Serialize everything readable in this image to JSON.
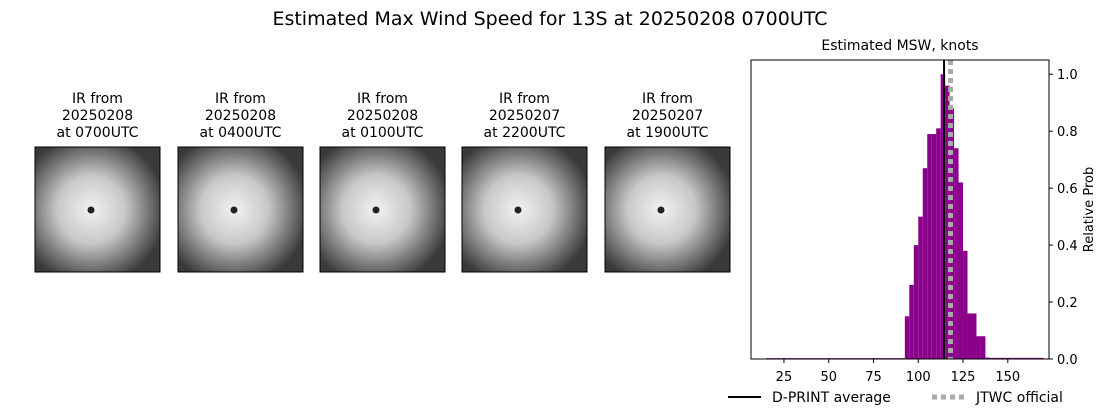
{
  "title": "Estimated Max Wind Speed for 13S at 20250208 0700UTC",
  "panels": [
    {
      "title": [
        "IR from",
        "20250208",
        "at 0700UTC"
      ]
    },
    {
      "title": [
        "IR from",
        "20250208",
        "at 0400UTC"
      ]
    },
    {
      "title": [
        "IR from",
        "20250208",
        "at 0100UTC"
      ]
    },
    {
      "title": [
        "IR from",
        "20250207",
        "at 2200UTC"
      ]
    },
    {
      "title": [
        "IR from",
        "20250207",
        "at 1900UTC"
      ]
    }
  ],
  "chart_data": {
    "type": "histogram",
    "title": "Estimated MSW, knots",
    "y_label": "Relative Prob",
    "color": "#8b008b",
    "bins": [
      15,
      92.5,
      95,
      97.5,
      100,
      102.5,
      105,
      107.5,
      110,
      112.5,
      115,
      117.5,
      120,
      122.5,
      125,
      127.5,
      130,
      132.5,
      135,
      137.5,
      140,
      170
    ],
    "values": [
      0.003,
      0.15,
      0.26,
      0.4,
      0.5,
      0.67,
      0.79,
      0.79,
      0.81,
      1.0,
      0.96,
      0.88,
      0.74,
      0.62,
      0.38,
      0.16,
      0.16,
      0.08,
      0.08,
      0.005,
      0.004
    ],
    "xlim": [
      6.6,
      173
    ],
    "ylim": [
      0,
      1.05
    ],
    "xticks": [
      25,
      50,
      75,
      100,
      125,
      150
    ],
    "yticks": [
      {
        "value": 0,
        "label": "0.0"
      },
      0.2,
      0.4,
      0.6,
      0.8,
      {
        "value": 1,
        "label": "1.0"
      }
    ],
    "reference_lines": [
      {
        "name": "D-PRINT average",
        "value": 114.4,
        "color": "#000000",
        "style": "solid"
      },
      {
        "name": "JTWC official",
        "value": 118,
        "color": "#aaaaaa",
        "style": "dotted"
      }
    ]
  }
}
